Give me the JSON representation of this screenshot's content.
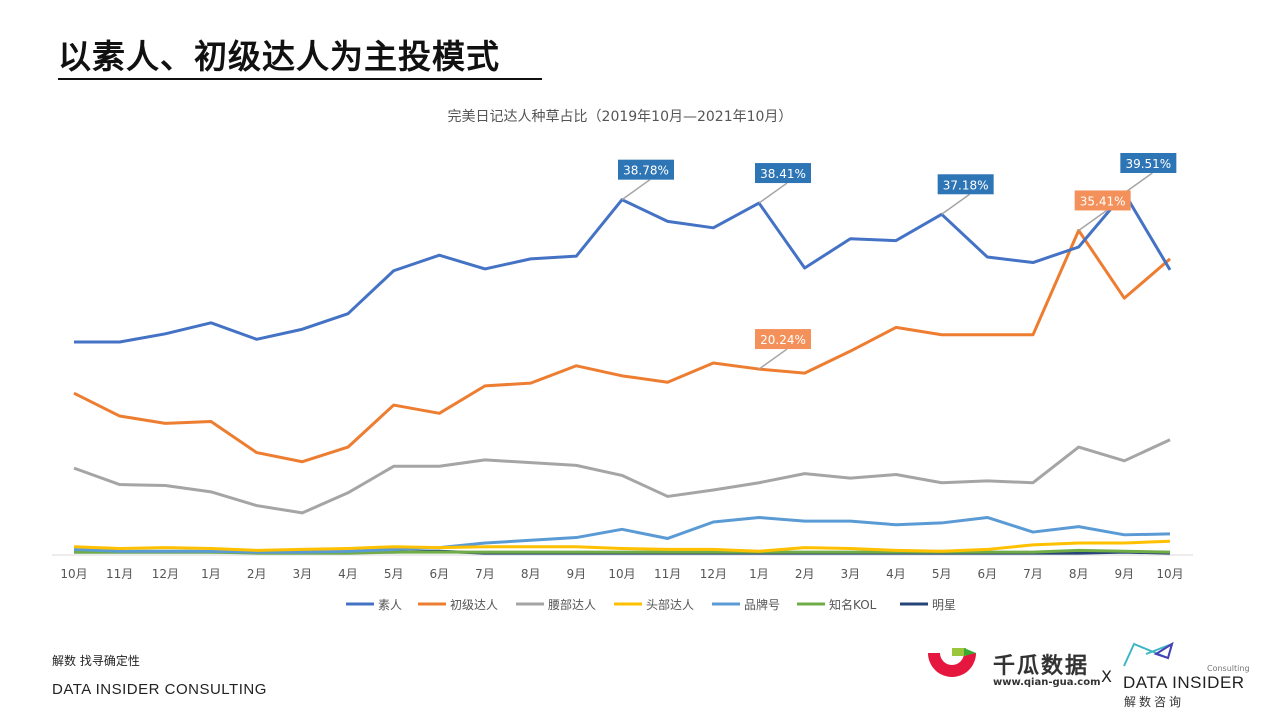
{
  "page_title": "以素人、初级达人为主投模式",
  "footer": {
    "tagline": "解数 找寻确定性",
    "company": "DATA INSIDER CONSULTING"
  },
  "logos": {
    "qiangua_name": "千瓜数据",
    "qiangua_url": "www.qian-gua.com",
    "separator": "X",
    "datainsider_name": "DATA INSIDER",
    "datainsider_sub": "Consulting",
    "datainsider_cn": "解数咨询"
  },
  "chart_data": {
    "type": "line",
    "title": "完美日记达人种草占比（2019年10月—2021年10月）",
    "categories": [
      "10月",
      "11月",
      "12月",
      "1月",
      "2月",
      "3月",
      "4月",
      "5月",
      "6月",
      "7月",
      "8月",
      "9月",
      "10月",
      "11月",
      "12月",
      "1月",
      "2月",
      "3月",
      "4月",
      "5月",
      "6月",
      "7月",
      "8月",
      "9月",
      "10月"
    ],
    "ylim": [
      0,
      40
    ],
    "y_unit": "%",
    "grid": false,
    "legend": "bottom",
    "series": [
      {
        "name": "素人",
        "color": "#4472C4",
        "values": [
          23.2,
          23.2,
          24.1,
          25.3,
          23.5,
          24.6,
          26.3,
          31.0,
          32.7,
          31.2,
          32.3,
          32.6,
          38.78,
          36.4,
          35.7,
          38.41,
          31.3,
          34.5,
          34.3,
          37.18,
          32.5,
          31.9,
          33.6,
          39.51,
          31.1
        ]
      },
      {
        "name": "初级达人",
        "color": "#ED7D31",
        "values": [
          17.6,
          15.1,
          14.3,
          14.5,
          11.1,
          10.1,
          11.7,
          16.3,
          15.4,
          18.4,
          18.7,
          20.6,
          19.5,
          18.8,
          20.9,
          20.24,
          19.8,
          22.2,
          24.8,
          24.0,
          24.0,
          24.0,
          35.41,
          28.0,
          32.3
        ]
      },
      {
        "name": "腰部达人",
        "color": "#A5A5A5",
        "values": [
          9.4,
          7.6,
          7.5,
          6.8,
          5.3,
          4.5,
          6.7,
          9.6,
          9.6,
          10.3,
          10.0,
          9.7,
          8.6,
          6.3,
          7.0,
          7.8,
          8.8,
          8.3,
          8.7,
          7.8,
          8.0,
          7.8,
          11.7,
          10.2,
          12.5
        ]
      },
      {
        "name": "头部达人",
        "color": "#FFC000",
        "values": [
          0.8,
          0.6,
          0.7,
          0.6,
          0.4,
          0.5,
          0.6,
          0.8,
          0.7,
          0.8,
          0.8,
          0.8,
          0.6,
          0.5,
          0.5,
          0.3,
          0.7,
          0.6,
          0.4,
          0.3,
          0.5,
          1.0,
          1.2,
          1.2,
          1.4
        ]
      },
      {
        "name": "品牌号",
        "color": "#5B9BD5",
        "values": [
          0.5,
          0.3,
          0.3,
          0.3,
          0.2,
          0.2,
          0.3,
          0.5,
          0.7,
          1.2,
          1.5,
          1.8,
          2.7,
          1.7,
          3.5,
          4.0,
          3.6,
          3.6,
          3.2,
          3.4,
          4.0,
          2.4,
          3.0,
          2.1,
          2.2
        ]
      },
      {
        "name": "知名KOL",
        "color": "#70AD47",
        "values": [
          0.2,
          0.2,
          0.2,
          0.2,
          0.1,
          0.1,
          0.1,
          0.2,
          0.2,
          0.2,
          0.2,
          0.2,
          0.2,
          0.2,
          0.2,
          0.2,
          0.2,
          0.2,
          0.2,
          0.2,
          0.2,
          0.2,
          0.4,
          0.3,
          0.2
        ]
      },
      {
        "name": "明星",
        "color": "#264478",
        "values": [
          0.2,
          0.2,
          0.2,
          0.2,
          0.2,
          0.2,
          0.2,
          0.2,
          0.3,
          0.1,
          0.1,
          0.1,
          0.1,
          0.1,
          0.1,
          0.1,
          0.1,
          0.1,
          0.1,
          0.1,
          0.1,
          0.1,
          0.1,
          0.2,
          0.1
        ]
      }
    ],
    "data_labels": [
      {
        "series": 0,
        "index": 12,
        "text": "38.78%"
      },
      {
        "series": 0,
        "index": 15,
        "text": "38.41%"
      },
      {
        "series": 0,
        "index": 19,
        "text": "37.18%"
      },
      {
        "series": 0,
        "index": 23,
        "text": "39.51%"
      },
      {
        "series": 1,
        "index": 15,
        "text": "20.24%"
      },
      {
        "series": 1,
        "index": 22,
        "text": "35.41%"
      }
    ]
  }
}
